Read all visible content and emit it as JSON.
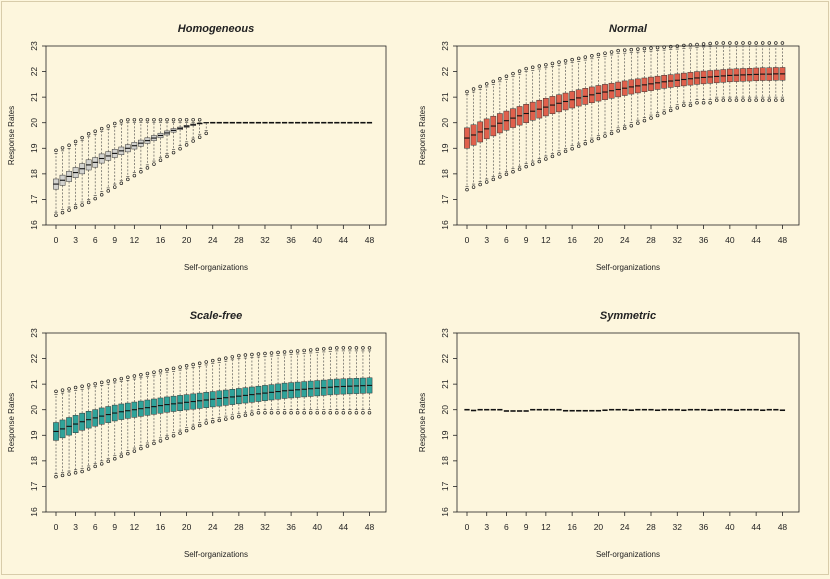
{
  "colors": {
    "background": "#fdf6dd",
    "homogeneous_box": "#d2d2ce",
    "normal_box": "#e0604c",
    "scalefree_box": "#2fa39a",
    "symmetric_box": "#ffffff"
  },
  "chart_data": [
    {
      "type": "box",
      "title": "Homogeneous",
      "xlabel": "Self-organizations",
      "ylabel": "Response Rates",
      "ylim": [
        16,
        23
      ],
      "yticks": [
        16,
        17,
        18,
        19,
        20,
        21,
        22,
        23
      ],
      "xticks": [
        0,
        3,
        6,
        9,
        12,
        16,
        20,
        24,
        28,
        32,
        36,
        40,
        44,
        48
      ],
      "x_range": [
        0,
        49
      ],
      "color": "#d2d2ce",
      "median": [
        17.6,
        17.75,
        17.9,
        18.05,
        18.2,
        18.35,
        18.45,
        18.6,
        18.7,
        18.8,
        18.9,
        19.0,
        19.1,
        19.2,
        19.3,
        19.4,
        19.5,
        19.6,
        19.7,
        19.78,
        19.86,
        19.92,
        19.97,
        20.0,
        20.0,
        20.0,
        20.0,
        20.0,
        20.0,
        20.0,
        20.0,
        20.0,
        20.0,
        20.0,
        20.0,
        20.0,
        20.0,
        20.0,
        20.0,
        20.0,
        20.0,
        20.0,
        20.0,
        20.0,
        20.0,
        20.0,
        20.0,
        20.0,
        20.0
      ],
      "iqr": [
        0.4,
        0.4,
        0.4,
        0.4,
        0.4,
        0.4,
        0.38,
        0.36,
        0.34,
        0.32,
        0.3,
        0.28,
        0.26,
        0.24,
        0.22,
        0.2,
        0.18,
        0.16,
        0.14,
        0.1,
        0.08,
        0.06,
        0.04,
        0.02,
        0.0,
        0.0,
        0.0,
        0.0,
        0.0,
        0.0,
        0.0,
        0.0,
        0.0,
        0.0,
        0.0,
        0.0,
        0.0,
        0.0,
        0.0,
        0.0,
        0.0,
        0.0,
        0.0,
        0.0,
        0.0,
        0.0,
        0.0,
        0.0,
        0.0
      ],
      "whisker_low": [
        16.5,
        16.6,
        16.7,
        16.8,
        16.9,
        17.0,
        17.15,
        17.3,
        17.45,
        17.6,
        17.75,
        17.9,
        18.05,
        18.2,
        18.35,
        18.5,
        18.65,
        18.8,
        18.95,
        19.1,
        19.25,
        19.4,
        19.55,
        19.7,
        20.0,
        20.0,
        20.0,
        20.0,
        20.0,
        20.0,
        20.0,
        20.0,
        20.0,
        20.0,
        20.0,
        20.0,
        20.0,
        20.0,
        20.0,
        20.0,
        20.0,
        20.0,
        20.0,
        20.0,
        20.0,
        20.0,
        20.0,
        20.0,
        20.0
      ],
      "whisker_high": [
        18.8,
        18.9,
        19.0,
        19.15,
        19.3,
        19.45,
        19.55,
        19.65,
        19.75,
        19.85,
        19.95,
        20.0,
        20.0,
        20.0,
        20.0,
        20.0,
        20.0,
        20.0,
        20.0,
        20.0,
        20.0,
        20.0,
        20.0,
        20.0,
        20.0,
        20.0,
        20.0,
        20.0,
        20.0,
        20.0,
        20.0,
        20.0,
        20.0,
        20.0,
        20.0,
        20.0,
        20.0,
        20.0,
        20.0,
        20.0,
        20.0,
        20.0,
        20.0,
        20.0,
        20.0,
        20.0,
        20.0,
        20.0,
        20.0
      ]
    },
    {
      "type": "box",
      "title": "Normal",
      "xlabel": "Self-organizations",
      "ylabel": "Response Rates",
      "ylim": [
        16,
        23
      ],
      "yticks": [
        16,
        17,
        18,
        19,
        20,
        21,
        22,
        23
      ],
      "xticks": [
        0,
        3,
        6,
        9,
        12,
        16,
        20,
        24,
        28,
        32,
        36,
        40,
        44,
        48
      ],
      "x_range": [
        0,
        49
      ],
      "color": "#e0604c",
      "median": [
        19.4,
        19.52,
        19.64,
        19.76,
        19.87,
        19.98,
        20.08,
        20.18,
        20.27,
        20.36,
        20.45,
        20.53,
        20.61,
        20.69,
        20.76,
        20.83,
        20.9,
        20.97,
        21.03,
        21.09,
        21.15,
        21.2,
        21.25,
        21.3,
        21.35,
        21.4,
        21.44,
        21.48,
        21.52,
        21.56,
        21.6,
        21.63,
        21.66,
        21.69,
        21.72,
        21.75,
        21.77,
        21.79,
        21.81,
        21.83,
        21.85,
        21.86,
        21.87,
        21.88,
        21.89,
        21.9,
        21.9,
        21.91,
        21.91
      ],
      "iqr": [
        0.8,
        0.8,
        0.79,
        0.78,
        0.77,
        0.76,
        0.75,
        0.74,
        0.73,
        0.72,
        0.71,
        0.7,
        0.69,
        0.68,
        0.67,
        0.66,
        0.65,
        0.64,
        0.63,
        0.62,
        0.61,
        0.6,
        0.59,
        0.58,
        0.57,
        0.56,
        0.55,
        0.54,
        0.53,
        0.52,
        0.51,
        0.5,
        0.5,
        0.5,
        0.5,
        0.5,
        0.5,
        0.5,
        0.5,
        0.5,
        0.5,
        0.5,
        0.5,
        0.5,
        0.5,
        0.5,
        0.5,
        0.5,
        0.5
      ],
      "whisker_low": [
        17.5,
        17.6,
        17.7,
        17.8,
        17.9,
        18.0,
        18.1,
        18.2,
        18.3,
        18.4,
        18.5,
        18.6,
        18.7,
        18.8,
        18.9,
        19.0,
        19.1,
        19.2,
        19.3,
        19.4,
        19.5,
        19.6,
        19.7,
        19.8,
        19.9,
        20.0,
        20.1,
        20.2,
        20.3,
        20.4,
        20.5,
        20.6,
        20.7,
        20.8,
        20.8,
        20.9,
        20.9,
        20.9,
        21.0,
        21.0,
        21.0,
        21.0,
        21.0,
        21.0,
        21.0,
        21.0,
        21.0,
        21.0,
        21.0
      ],
      "whisker_high": [
        21.1,
        21.2,
        21.3,
        21.4,
        21.5,
        21.6,
        21.7,
        21.8,
        21.9,
        22.0,
        22.05,
        22.1,
        22.15,
        22.2,
        22.25,
        22.3,
        22.35,
        22.4,
        22.45,
        22.5,
        22.55,
        22.6,
        22.65,
        22.7,
        22.72,
        22.74,
        22.76,
        22.78,
        22.8,
        22.82,
        22.84,
        22.86,
        22.88,
        22.9,
        22.92,
        22.94,
        22.96,
        22.98,
        23.0,
        23.0,
        23.0,
        23.0,
        23.0,
        23.0,
        23.0,
        23.0,
        23.0,
        23.0,
        23.0
      ]
    },
    {
      "type": "box",
      "title": "Scale-free",
      "xlabel": "Self-organizations",
      "ylabel": "Response Rates",
      "ylim": [
        16,
        23
      ],
      "yticks": [
        16,
        17,
        18,
        19,
        20,
        21,
        22,
        23
      ],
      "xticks": [
        0,
        3,
        6,
        9,
        12,
        16,
        20,
        24,
        28,
        32,
        36,
        40,
        44,
        48
      ],
      "x_range": [
        0,
        49
      ],
      "color": "#2fa39a",
      "median": [
        19.15,
        19.25,
        19.35,
        19.44,
        19.53,
        19.61,
        19.68,
        19.75,
        19.81,
        19.87,
        19.92,
        19.96,
        20.0,
        20.04,
        20.08,
        20.12,
        20.16,
        20.2,
        20.23,
        20.26,
        20.29,
        20.32,
        20.35,
        20.38,
        20.41,
        20.44,
        20.47,
        20.5,
        20.53,
        20.56,
        20.59,
        20.62,
        20.65,
        20.68,
        20.71,
        20.74,
        20.76,
        20.78,
        20.8,
        20.82,
        20.84,
        20.86,
        20.88,
        20.9,
        20.91,
        20.92,
        20.93,
        20.94,
        20.95
      ],
      "iqr": [
        0.7,
        0.7,
        0.69,
        0.68,
        0.67,
        0.66,
        0.65,
        0.64,
        0.63,
        0.62,
        0.61,
        0.6,
        0.6,
        0.6,
        0.6,
        0.6,
        0.6,
        0.6,
        0.6,
        0.6,
        0.6,
        0.6,
        0.6,
        0.6,
        0.6,
        0.6,
        0.6,
        0.6,
        0.6,
        0.6,
        0.6,
        0.6,
        0.6,
        0.6,
        0.6,
        0.6,
        0.6,
        0.6,
        0.6,
        0.6,
        0.6,
        0.6,
        0.6,
        0.6,
        0.6,
        0.6,
        0.6,
        0.6,
        0.6
      ],
      "whisker_low": [
        17.5,
        17.55,
        17.6,
        17.65,
        17.7,
        17.8,
        17.9,
        18.0,
        18.1,
        18.2,
        18.3,
        18.4,
        18.5,
        18.6,
        18.7,
        18.8,
        18.9,
        19.0,
        19.1,
        19.2,
        19.3,
        19.4,
        19.5,
        19.6,
        19.65,
        19.7,
        19.75,
        19.8,
        19.85,
        19.9,
        19.95,
        20.0,
        20.0,
        20.0,
        20.0,
        20.0,
        20.0,
        20.0,
        20.0,
        20.0,
        20.0,
        20.0,
        20.0,
        20.0,
        20.0,
        20.0,
        20.0,
        20.0,
        20.0
      ],
      "whisker_high": [
        20.6,
        20.65,
        20.7,
        20.75,
        20.8,
        20.85,
        20.9,
        20.95,
        21.0,
        21.05,
        21.1,
        21.15,
        21.2,
        21.25,
        21.3,
        21.35,
        21.4,
        21.45,
        21.5,
        21.55,
        21.6,
        21.65,
        21.7,
        21.75,
        21.8,
        21.85,
        21.9,
        21.95,
        22.0,
        22.02,
        22.04,
        22.06,
        22.08,
        22.1,
        22.12,
        22.14,
        22.16,
        22.18,
        22.2,
        22.22,
        22.24,
        22.26,
        22.28,
        22.3,
        22.3,
        22.3,
        22.3,
        22.3,
        22.3
      ]
    },
    {
      "type": "box",
      "title": "Symmetric",
      "xlabel": "Self-organizations",
      "ylabel": "Response Rates",
      "ylim": [
        16,
        23
      ],
      "yticks": [
        16,
        17,
        18,
        19,
        20,
        21,
        22,
        23
      ],
      "xticks": [
        0,
        3,
        6,
        9,
        12,
        16,
        20,
        24,
        28,
        32,
        36,
        40,
        44,
        48
      ],
      "x_range": [
        0,
        49
      ],
      "color": "#ffffff",
      "median": [
        20.0,
        19.97,
        20.0,
        20.0,
        20.0,
        20.0,
        19.95,
        19.95,
        19.95,
        19.95,
        20.0,
        20.0,
        20.0,
        20.0,
        20.0,
        19.96,
        19.96,
        19.96,
        19.96,
        19.96,
        19.96,
        19.98,
        20.0,
        20.0,
        20.0,
        19.98,
        20.0,
        20.0,
        20.0,
        19.98,
        20.0,
        20.0,
        20.0,
        19.98,
        20.0,
        20.0,
        20.0,
        19.98,
        20.0,
        20.0,
        20.0,
        19.98,
        20.0,
        20.0,
        20.0,
        19.98,
        20.0,
        20.0,
        19.98
      ],
      "iqr": [
        0.0,
        0.0,
        0.0,
        0.0,
        0.0,
        0.0,
        0.0,
        0.0,
        0.0,
        0.0,
        0.0,
        0.0,
        0.0,
        0.0,
        0.0,
        0.0,
        0.0,
        0.0,
        0.0,
        0.0,
        0.0,
        0.0,
        0.0,
        0.0,
        0.0,
        0.0,
        0.0,
        0.0,
        0.0,
        0.0,
        0.0,
        0.0,
        0.0,
        0.0,
        0.0,
        0.0,
        0.0,
        0.0,
        0.0,
        0.0,
        0.0,
        0.0,
        0.0,
        0.0,
        0.0,
        0.0,
        0.0,
        0.0,
        0.0
      ],
      "whisker_low": [
        20.0,
        19.97,
        20.0,
        20.0,
        20.0,
        20.0,
        19.95,
        19.95,
        19.95,
        19.95,
        20.0,
        20.0,
        20.0,
        20.0,
        20.0,
        19.96,
        19.96,
        19.96,
        19.96,
        19.96,
        19.96,
        19.98,
        20.0,
        20.0,
        20.0,
        19.98,
        20.0,
        20.0,
        20.0,
        19.98,
        20.0,
        20.0,
        20.0,
        19.98,
        20.0,
        20.0,
        20.0,
        19.98,
        20.0,
        20.0,
        20.0,
        19.98,
        20.0,
        20.0,
        20.0,
        19.98,
        20.0,
        20.0,
        19.98
      ],
      "whisker_high": [
        20.0,
        19.97,
        20.0,
        20.0,
        20.0,
        20.0,
        19.95,
        19.95,
        19.95,
        19.95,
        20.0,
        20.0,
        20.0,
        20.0,
        20.0,
        19.96,
        19.96,
        19.96,
        19.96,
        19.96,
        19.96,
        19.98,
        20.0,
        20.0,
        20.0,
        19.98,
        20.0,
        20.0,
        20.0,
        19.98,
        20.0,
        20.0,
        20.0,
        19.98,
        20.0,
        20.0,
        20.0,
        19.98,
        20.0,
        20.0,
        20.0,
        19.98,
        20.0,
        20.0,
        19.98
      ]
    }
  ]
}
